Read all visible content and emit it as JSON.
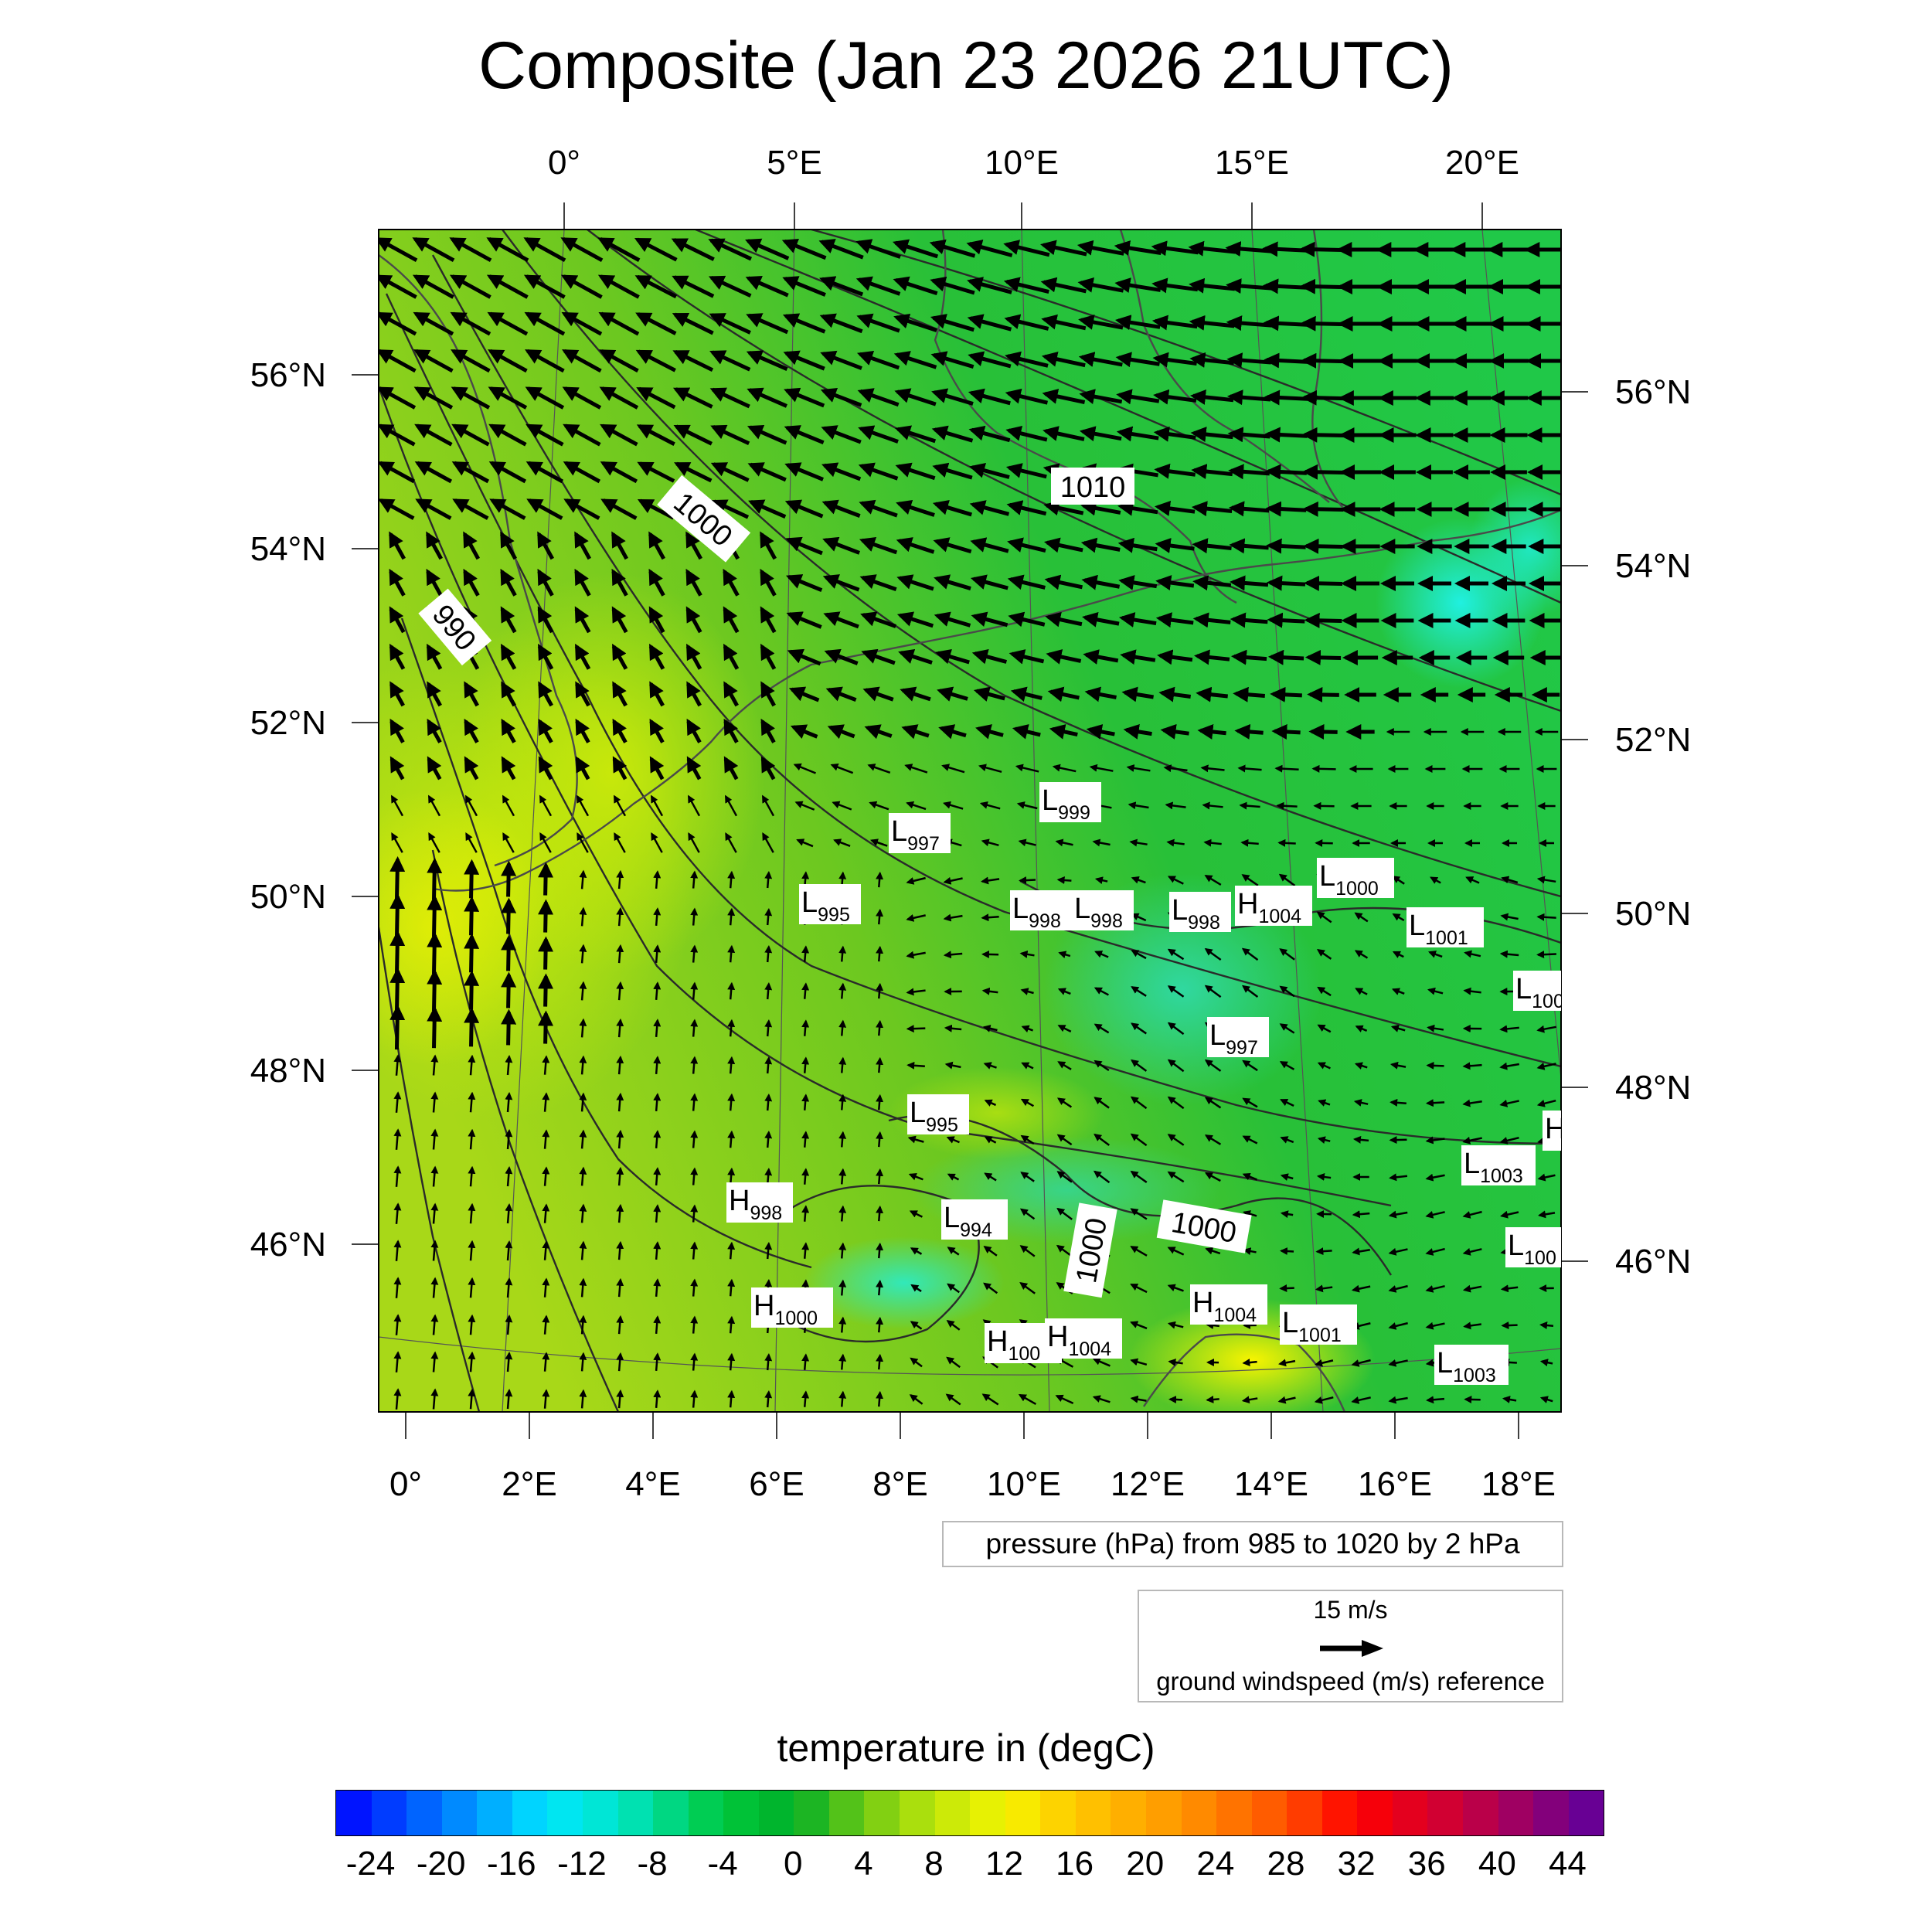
{
  "title": "Composite (Jan 23 2026 21UTC)",
  "map": {
    "top_lon_labels": [
      "0°",
      "5°E",
      "10°E",
      "15°E",
      "20°E"
    ],
    "bottom_lon_labels": [
      "0°",
      "2°E",
      "4°E",
      "6°E",
      "8°E",
      "10°E",
      "12°E",
      "14°E",
      "16°E",
      "18°E"
    ],
    "left_lat_labels": [
      "56°N",
      "54°N",
      "52°N",
      "50°N",
      "48°N",
      "46°N"
    ],
    "right_lat_labels": [
      "56°N",
      "54°N",
      "52°N",
      "50°N",
      "48°N",
      "46°N"
    ],
    "isobar_labels": [
      "1010",
      "1000",
      "990",
      "1000",
      "1000"
    ],
    "pressure_centers": [
      {
        "kind": "L",
        "value": "997"
      },
      {
        "kind": "L",
        "value": "999"
      },
      {
        "kind": "L",
        "value": "995"
      },
      {
        "kind": "L",
        "value": "998"
      },
      {
        "kind": "L",
        "value": "998"
      },
      {
        "kind": "L",
        "value": "998"
      },
      {
        "kind": "H",
        "value": "1004"
      },
      {
        "kind": "L",
        "value": "1000"
      },
      {
        "kind": "L",
        "value": "1001"
      },
      {
        "kind": "L",
        "value": "100"
      },
      {
        "kind": "L",
        "value": "997"
      },
      {
        "kind": "L",
        "value": "995"
      },
      {
        "kind": "H",
        "value": ""
      },
      {
        "kind": "L",
        "value": "1003"
      },
      {
        "kind": "H",
        "value": "998"
      },
      {
        "kind": "L",
        "value": "994"
      },
      {
        "kind": "L",
        "value": "100"
      },
      {
        "kind": "H",
        "value": "1000"
      },
      {
        "kind": "H",
        "value": "1004"
      },
      {
        "kind": "H",
        "value": "100"
      },
      {
        "kind": "H",
        "value": "1004"
      },
      {
        "kind": "L",
        "value": "1001"
      },
      {
        "kind": "L",
        "value": "1003"
      }
    ],
    "colors": {
      "ocean_north": "#1ec43c",
      "land_west": "#a6d81a",
      "cold_spot": "#20f0d8",
      "warm_spot": "#f0f000",
      "contour": "#303030",
      "coastline": "#505050"
    }
  },
  "pressure_note": "pressure (hPa) from 985 to 1020 by 2 hPa",
  "wind_reference": {
    "speed_label": "15 m/s",
    "description": "ground windspeed (m/s) reference"
  },
  "colorbar": {
    "title": "temperature in (degC)",
    "tick_labels": [
      "-24",
      "-20",
      "-16",
      "-12",
      "-8",
      "-4",
      "0",
      "4",
      "8",
      "12",
      "16",
      "20",
      "24",
      "28",
      "32",
      "36",
      "40",
      "44"
    ],
    "range": [
      -26,
      46
    ],
    "step": 2
  }
}
